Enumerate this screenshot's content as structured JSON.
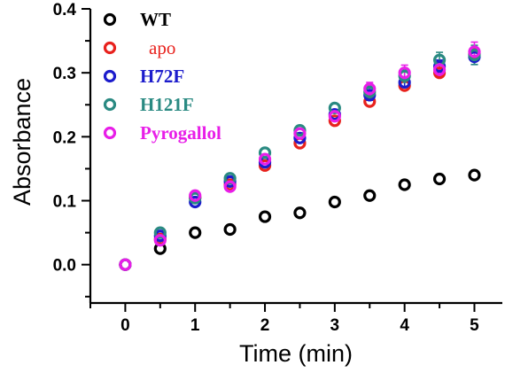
{
  "chart_data": {
    "type": "scatter",
    "xlabel": "Time (min)",
    "ylabel": "Absorbance",
    "xlim": [
      -0.5,
      5.4
    ],
    "ylim": [
      -0.06,
      0.4
    ],
    "x_ticks": [
      "0",
      "1",
      "2",
      "3",
      "4",
      "5"
    ],
    "y_ticks": [
      "0.0",
      "0.1",
      "0.2",
      "0.3",
      "0.4"
    ],
    "grid": false,
    "legend_position": "top-left",
    "series": [
      {
        "name": "WT",
        "color": "#000000",
        "x": [
          0,
          0.5,
          1,
          1.5,
          2,
          2.5,
          3,
          3.5,
          4,
          4.5,
          5
        ],
        "y": [
          0,
          0.025,
          0.05,
          0.055,
          0.075,
          0.081,
          0.098,
          0.108,
          0.125,
          0.134,
          0.14
        ]
      },
      {
        "name": "apo",
        "color": "#e8221d",
        "x": [
          0,
          0.5,
          1,
          1.5,
          2,
          2.5,
          3,
          3.5,
          4,
          4.5,
          5
        ],
        "y": [
          0,
          0.04,
          0.105,
          0.125,
          0.155,
          0.19,
          0.225,
          0.255,
          0.28,
          0.3,
          0.33
        ]
      },
      {
        "name": "H72F",
        "color": "#1c1ccc",
        "x": [
          0,
          0.5,
          1,
          1.5,
          2,
          2.5,
          3,
          3.5,
          4,
          4.5,
          5
        ],
        "y": [
          0,
          0.045,
          0.098,
          0.13,
          0.16,
          0.198,
          0.235,
          0.265,
          0.285,
          0.31,
          0.325
        ],
        "error": [
          0,
          0,
          0,
          0,
          0,
          0,
          0,
          0.008,
          0.008,
          0.01,
          0.012
        ]
      },
      {
        "name": "H121F",
        "color": "#2a8a82",
        "x": [
          0,
          0.5,
          1,
          1.5,
          2,
          2.5,
          3,
          3.5,
          4,
          4.5,
          5
        ],
        "y": [
          0,
          0.05,
          0.104,
          0.135,
          0.175,
          0.21,
          0.245,
          0.27,
          0.295,
          0.32,
          0.328
        ],
        "error": [
          0,
          0,
          0,
          0,
          0,
          0,
          0,
          0.01,
          0.01,
          0.012,
          0.015
        ]
      },
      {
        "name": "Pyrogallol",
        "color": "#e81ee8",
        "x": [
          0,
          0.5,
          1,
          1.5,
          2,
          2.5,
          3,
          3.5,
          4,
          4.5,
          5
        ],
        "y": [
          0,
          0.038,
          0.108,
          0.122,
          0.165,
          0.205,
          0.232,
          0.275,
          0.3,
          0.305,
          0.333
        ],
        "error": [
          0,
          0,
          0,
          0,
          0,
          0,
          0,
          0.01,
          0.012,
          0.01,
          0.015
        ]
      }
    ]
  }
}
